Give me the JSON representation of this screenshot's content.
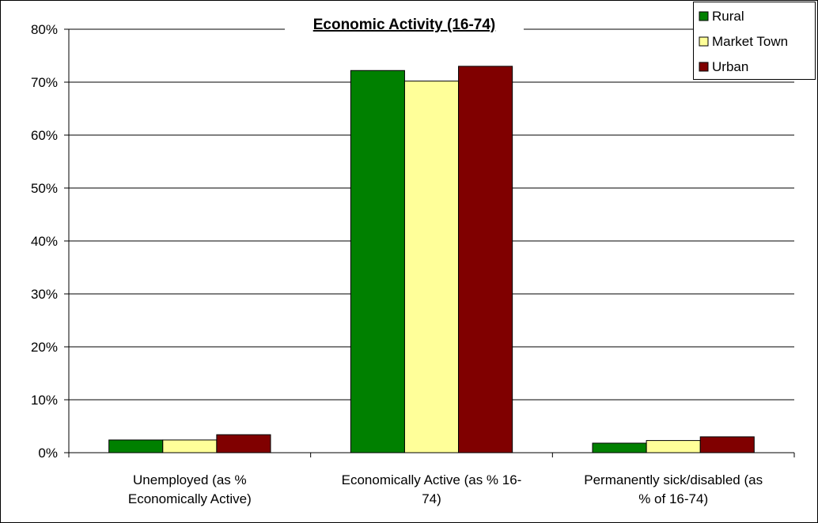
{
  "chart_data": {
    "type": "bar",
    "title": "Economic Activity (16-74)",
    "categories": [
      [
        "Unemployed (as %",
        "Economically Active)"
      ],
      [
        "Economically Active (as % 16-",
        "74)"
      ],
      [
        "Permanently sick/disabled (as",
        "% of 16-74)"
      ]
    ],
    "series": [
      {
        "name": "Rural",
        "color": "#008000",
        "values": [
          2.4,
          72.2,
          1.8
        ]
      },
      {
        "name": "Market Town",
        "color": "#ffff99",
        "values": [
          2.4,
          70.2,
          2.3
        ]
      },
      {
        "name": "Urban",
        "color": "#800000",
        "values": [
          3.4,
          73.0,
          3.0
        ]
      }
    ],
    "y_ticks": [
      "0%",
      "10%",
      "20%",
      "30%",
      "40%",
      "50%",
      "60%",
      "70%",
      "80%"
    ],
    "ylim": [
      0,
      80
    ],
    "grid": true,
    "legend_position": "top-right",
    "xlabel": "",
    "ylabel": ""
  }
}
